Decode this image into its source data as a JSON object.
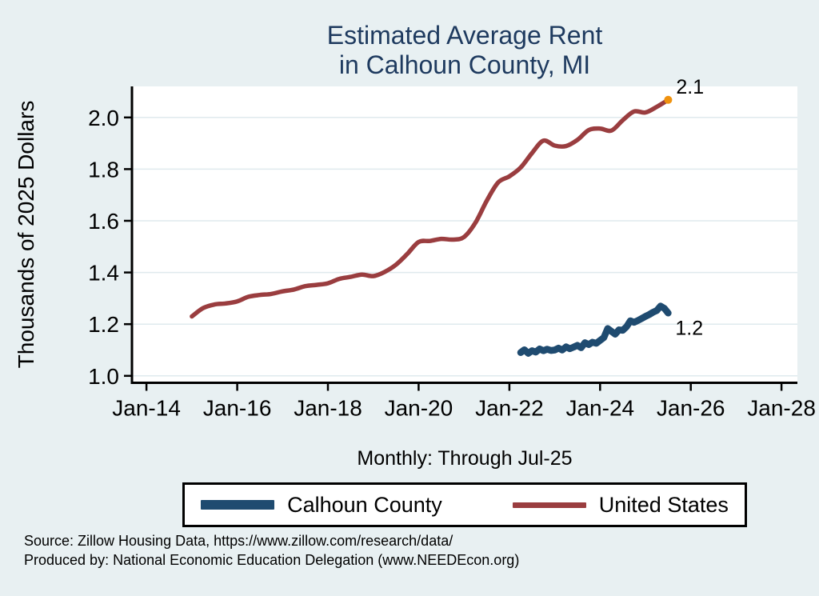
{
  "page": {
    "background": "#e8f0f2"
  },
  "chart_data": {
    "type": "line",
    "title_lines": [
      "Estimated Average Rent",
      "in Calhoun County, MI"
    ],
    "title_color": "#1e3a5f",
    "ylabel": "Thousands of 2025 Dollars",
    "xlabel": "Monthly: Through Jul-25",
    "x_tick_values": [
      2014,
      2016,
      2018,
      2020,
      2022,
      2024,
      2026,
      2028
    ],
    "x_tick_labels": [
      "Jan-14",
      "Jan-16",
      "Jan-18",
      "Jan-20",
      "Jan-22",
      "Jan-24",
      "Jan-26",
      "Jan-28"
    ],
    "y_tick_values": [
      1.0,
      1.2,
      1.4,
      1.6,
      1.8,
      2.0
    ],
    "y_tick_labels": [
      "1.0",
      "1.2",
      "1.4",
      "1.6",
      "1.8",
      "2.0"
    ],
    "xlim": [
      2013.68,
      2028.35
    ],
    "ylim": [
      0.973,
      2.12
    ],
    "grid": "horizontal",
    "gridline_color": "#dfeaee",
    "axis_color": "#000000",
    "plot_bg": "#ffffff",
    "legend_position": "bottom",
    "series": [
      {
        "name": "Calhoun County",
        "color": "#1f4b70",
        "stroke_width": 8.5,
        "smooth": false,
        "end_label": "1.2",
        "end_label_dx": 9,
        "end_label_dy": 27,
        "x": [
          2022.25,
          2022.333,
          2022.417,
          2022.5,
          2022.583,
          2022.667,
          2022.75,
          2022.833,
          2022.917,
          2023.0,
          2023.083,
          2023.167,
          2023.25,
          2023.333,
          2023.417,
          2023.5,
          2023.583,
          2023.667,
          2023.75,
          2023.833,
          2023.917,
          2024.0,
          2024.083,
          2024.167,
          2024.25,
          2024.333,
          2024.417,
          2024.5,
          2024.583,
          2024.667,
          2024.75,
          2024.833,
          2024.917,
          2025.0,
          2025.083,
          2025.167,
          2025.25,
          2025.333,
          2025.417,
          2025.5
        ],
        "values": [
          1.09,
          1.101,
          1.087,
          1.097,
          1.092,
          1.104,
          1.097,
          1.103,
          1.098,
          1.1,
          1.107,
          1.1,
          1.112,
          1.105,
          1.111,
          1.118,
          1.109,
          1.128,
          1.121,
          1.13,
          1.126,
          1.137,
          1.148,
          1.183,
          1.172,
          1.161,
          1.178,
          1.176,
          1.19,
          1.213,
          1.207,
          1.214,
          1.222,
          1.23,
          1.237,
          1.246,
          1.253,
          1.27,
          1.261,
          1.243
        ]
      },
      {
        "name": "United States",
        "color": "#9a3d3f",
        "stroke_width": 5.5,
        "smooth": true,
        "end_label": "2.1",
        "end_label_dx": 10,
        "end_label_dy": -8,
        "end_marker": {
          "color": "#f0920e",
          "radius": 5
        },
        "x": [
          2015.0,
          2015.25,
          2015.5,
          2015.75,
          2016.0,
          2016.25,
          2016.5,
          2016.75,
          2017.0,
          2017.25,
          2017.5,
          2017.75,
          2018.0,
          2018.25,
          2018.5,
          2018.75,
          2019.0,
          2019.25,
          2019.5,
          2019.75,
          2020.0,
          2020.25,
          2020.5,
          2020.75,
          2021.0,
          2021.25,
          2021.5,
          2021.75,
          2022.0,
          2022.25,
          2022.5,
          2022.75,
          2023.0,
          2023.25,
          2023.5,
          2023.75,
          2024.0,
          2024.25,
          2024.5,
          2024.75,
          2025.0,
          2025.25,
          2025.5
        ],
        "values": [
          1.23,
          1.262,
          1.276,
          1.28,
          1.288,
          1.306,
          1.313,
          1.317,
          1.327,
          1.334,
          1.347,
          1.352,
          1.358,
          1.375,
          1.383,
          1.392,
          1.386,
          1.402,
          1.43,
          1.472,
          1.518,
          1.522,
          1.53,
          1.527,
          1.537,
          1.592,
          1.677,
          1.748,
          1.772,
          1.806,
          1.862,
          1.91,
          1.891,
          1.889,
          1.913,
          1.951,
          1.957,
          1.949,
          1.989,
          2.023,
          2.019,
          2.041,
          2.068
        ]
      }
    ]
  },
  "footer": {
    "source_line": "Source: Zillow Housing Data, https://www.zillow.com/research/data/",
    "produced_line": "Produced by: National Economic Education Delegation (www.NEEDEcon.org)"
  }
}
